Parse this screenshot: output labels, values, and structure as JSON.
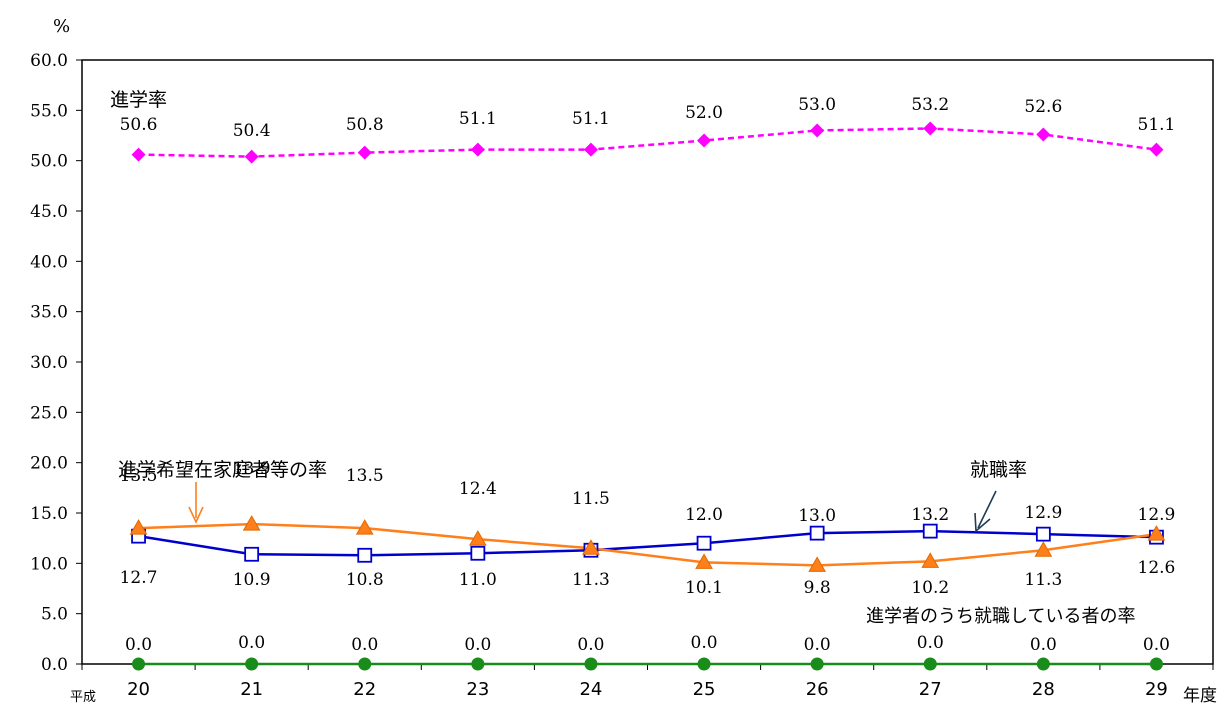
{
  "chart_data": {
    "type": "line",
    "y_unit": "%",
    "x_prefix": "平成",
    "x_suffix": "年度",
    "categories": [
      "20",
      "21",
      "22",
      "23",
      "24",
      "25",
      "26",
      "27",
      "28",
      "29"
    ],
    "ylim": [
      0,
      60
    ],
    "yticks": [
      "0.0",
      "5.0",
      "10.0",
      "15.0",
      "20.0",
      "25.0",
      "30.0",
      "35.0",
      "40.0",
      "45.0",
      "50.0",
      "55.0",
      "60.0"
    ],
    "grid": false,
    "series": [
      {
        "name": "進学率",
        "values": [
          50.6,
          50.4,
          50.8,
          51.1,
          51.1,
          52.0,
          53.0,
          53.2,
          52.6,
          51.1
        ],
        "labels": [
          "50.6",
          "50.4",
          "50.8",
          "51.1",
          "51.1",
          "52.0",
          "53.0",
          "53.2",
          "52.6",
          "51.1"
        ],
        "color": "#ff00ff",
        "marker": "diamond",
        "line_style": "dashed"
      },
      {
        "name": "就職率",
        "values": [
          12.7,
          10.9,
          10.8,
          11.0,
          11.3,
          12.0,
          13.0,
          13.2,
          12.9,
          12.6
        ],
        "labels": [
          "12.7",
          "10.9",
          "10.8",
          "11.0",
          "11.3",
          "12.0",
          "13.0",
          "13.2",
          "12.9",
          "12.6"
        ],
        "color": "#0000cc",
        "marker": "square-open",
        "line_style": "solid"
      },
      {
        "name": "進学希望在家庭者等の率",
        "values": [
          13.5,
          13.9,
          13.5,
          12.4,
          11.5,
          10.1,
          9.8,
          10.2,
          11.3,
          12.9
        ],
        "labels": [
          "13.5",
          "13.9",
          "13.5",
          "12.4",
          "11.5",
          "10.1",
          "9.8",
          "10.2",
          "11.3",
          "12.9"
        ],
        "color": "#ff7f1a",
        "marker": "triangle",
        "line_style": "solid"
      },
      {
        "name": "進学者のうち就職している者の率",
        "values": [
          0.0,
          0.0,
          0.0,
          0.0,
          0.0,
          0.0,
          0.0,
          0.0,
          0.0,
          0.0
        ],
        "labels": [
          "0.0",
          "0.0",
          "0.0",
          "0.0",
          "0.0",
          "0.0",
          "0.0",
          "0.0",
          "0.0",
          "0.0"
        ],
        "color": "#1a8c1a",
        "marker": "circle",
        "line_style": "solid"
      }
    ]
  }
}
